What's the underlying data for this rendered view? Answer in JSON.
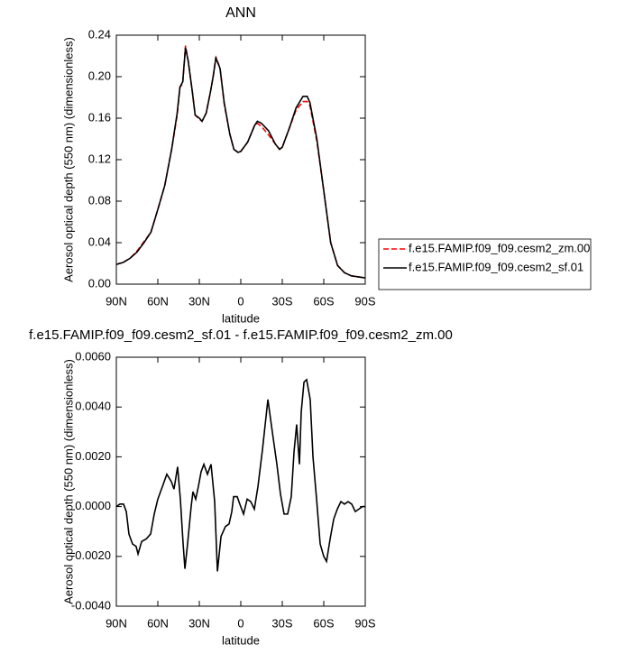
{
  "chart_data": [
    {
      "type": "line",
      "title": "ANN",
      "xlabel": "latitude",
      "ylabel": "Aerosol optical depth (550 nm) (dimensionless)",
      "x": [
        90,
        85,
        80,
        75,
        70,
        65,
        60,
        55,
        50,
        46,
        44,
        42,
        40,
        38,
        35,
        33,
        30,
        28,
        25,
        22,
        20,
        18,
        15,
        12,
        8,
        5,
        2,
        0,
        -5,
        -10,
        -12,
        -15,
        -20,
        -25,
        -28,
        -30,
        -35,
        -40,
        -45,
        -48,
        -50,
        -55,
        -60,
        -65,
        -70,
        -75,
        -80,
        -85,
        -90
      ],
      "series": [
        {
          "name": "f.e15.FAMIP.f09_f09.cesm2_zm.00",
          "color": "#ff0000",
          "linestyle": "dashed",
          "values": [
            0.019,
            0.021,
            0.025,
            0.032,
            0.041,
            0.05,
            0.072,
            0.095,
            0.13,
            0.163,
            0.19,
            0.193,
            0.23,
            0.215,
            0.185,
            0.163,
            0.159,
            0.157,
            0.165,
            0.185,
            0.2,
            0.219,
            0.208,
            0.174,
            0.145,
            0.13,
            0.127,
            0.128,
            0.137,
            0.153,
            0.155,
            0.152,
            0.144,
            0.135,
            0.13,
            0.132,
            0.15,
            0.168,
            0.176,
            0.176,
            0.172,
            0.138,
            0.09,
            0.04,
            0.018,
            0.011,
            0.008,
            0.007,
            0.006
          ]
        },
        {
          "name": "f.e15.FAMIP.f09_f09.cesm2_sf.01",
          "color": "#000000",
          "linestyle": "solid",
          "values": [
            0.019,
            0.021,
            0.025,
            0.031,
            0.04,
            0.05,
            0.072,
            0.095,
            0.13,
            0.165,
            0.19,
            0.195,
            0.228,
            0.215,
            0.185,
            0.163,
            0.16,
            0.157,
            0.165,
            0.185,
            0.2,
            0.218,
            0.208,
            0.175,
            0.145,
            0.13,
            0.127,
            0.128,
            0.137,
            0.153,
            0.157,
            0.155,
            0.148,
            0.135,
            0.13,
            0.132,
            0.15,
            0.17,
            0.181,
            0.181,
            0.175,
            0.14,
            0.09,
            0.04,
            0.018,
            0.011,
            0.008,
            0.007,
            0.006
          ]
        }
      ],
      "xlim": [
        90,
        -90
      ],
      "xticks": [
        {
          "value": 90,
          "label": "90N"
        },
        {
          "value": 60,
          "label": "60N"
        },
        {
          "value": 30,
          "label": "30N"
        },
        0,
        {
          "value": -30,
          "label": "30S"
        },
        {
          "value": -60,
          "label": "60S"
        },
        {
          "value": -90,
          "label": "90S"
        }
      ],
      "ylim": [
        0,
        0.24
      ],
      "yticks": [
        {
          "value": 0,
          "label": "0.00"
        },
        {
          "value": 0.04,
          "label": "0.04"
        },
        {
          "value": 0.08,
          "label": "0.08"
        },
        {
          "value": 0.12,
          "label": "0.12"
        },
        {
          "value": 0.16,
          "label": "0.16"
        },
        {
          "value": 0.2,
          "label": "0.20"
        },
        {
          "value": 0.24,
          "label": "0.24"
        }
      ],
      "legend": "right"
    },
    {
      "type": "line",
      "title": "f.e15.FAMIP.f09_f09.cesm2_sf.01 - f.e15.FAMIP.f09_f09.cesm2_zm.00",
      "xlabel": "latitude",
      "ylabel": "Aerosol optical depth (550 nm) (dimensionless)",
      "x": [
        90,
        87.4,
        84.8,
        82.8,
        80.9,
        78.3,
        75.7,
        74.3,
        71.7,
        68.4,
        65.2,
        62.6,
        60,
        56.7,
        53.5,
        50.2,
        48.3,
        45.7,
        43.7,
        41.7,
        40.4,
        38.5,
        35.9,
        34.6,
        32.6,
        30.7,
        28.7,
        26.7,
        24.1,
        21.5,
        18.9,
        16.9,
        14.3,
        11.1,
        8.5,
        6.5,
        5.2,
        2.6,
        0.7,
        -2,
        -4.6,
        -7.2,
        -9.8,
        -12.4,
        -15.7,
        -19.6,
        -22.8,
        -26.1,
        -28.7,
        -31.3,
        -33.9,
        -36.5,
        -38.5,
        -40.4,
        -42.4,
        -43.7,
        -45.7,
        -47.6,
        -50.2,
        -52.2,
        -54.8,
        -57.4,
        -60,
        -62,
        -64.6,
        -67.2,
        -69.8,
        -72.4,
        -75,
        -77.6,
        -80.2,
        -82.8,
        -85.4,
        -88,
        -90
      ],
      "series": [
        {
          "color": "#000000",
          "linestyle": "solid",
          "values": [
            0.0,
            0.0001,
            0.0001,
            -0.0002,
            -0.0011,
            -0.0015,
            -0.0016,
            -0.0019,
            -0.0014,
            -0.0013,
            -0.0011,
            -0.0003,
            0.0003,
            0.0008,
            0.0013,
            0.001,
            0.0007,
            0.0016,
            0.0003,
            -0.0015,
            -0.0025,
            -0.0015,
            0.0,
            0.0006,
            0.0003,
            0.0008,
            0.0014,
            0.0017,
            0.0013,
            0.0017,
            0.0002,
            -0.0026,
            -0.0012,
            -0.0008,
            -0.0007,
            -0.0002,
            0.0004,
            0.0004,
            0.0001,
            -0.0003,
            0.0003,
            0.0002,
            -0.0001,
            0.0008,
            0.0023,
            0.0043,
            0.003,
            0.0017,
            0.0005,
            -0.0003,
            -0.0003,
            0.0004,
            0.0022,
            0.0033,
            0.0017,
            0.0038,
            0.005,
            0.0051,
            0.0043,
            0.002,
            0.0003,
            -0.0015,
            -0.002,
            -0.0022,
            -0.0013,
            -0.0005,
            -0.0001,
            0.0002,
            0.0001,
            0.0002,
            0.0001,
            -0.0002,
            -0.0001,
            0.0,
            0.0
          ]
        }
      ],
      "xlim": [
        90,
        -90
      ],
      "xticks": [
        {
          "value": 90,
          "label": "90N"
        },
        {
          "value": 60,
          "label": "60N"
        },
        {
          "value": 30,
          "label": "30N"
        },
        0,
        {
          "value": -30,
          "label": "30S"
        },
        {
          "value": -60,
          "label": "60S"
        },
        {
          "value": -90,
          "label": "90S"
        }
      ],
      "ylim": [
        -0.004,
        0.006
      ],
      "yticks": [
        {
          "value": -0.004,
          "label": "-0.0040"
        },
        {
          "value": -0.002,
          "label": "-0.0020"
        },
        {
          "value": 0,
          "label": "0.0000"
        },
        {
          "value": 0.002,
          "label": "0.0020"
        },
        {
          "value": 0.004,
          "label": "0.0040"
        },
        {
          "value": 0.006,
          "label": "0.0060"
        }
      ]
    }
  ]
}
